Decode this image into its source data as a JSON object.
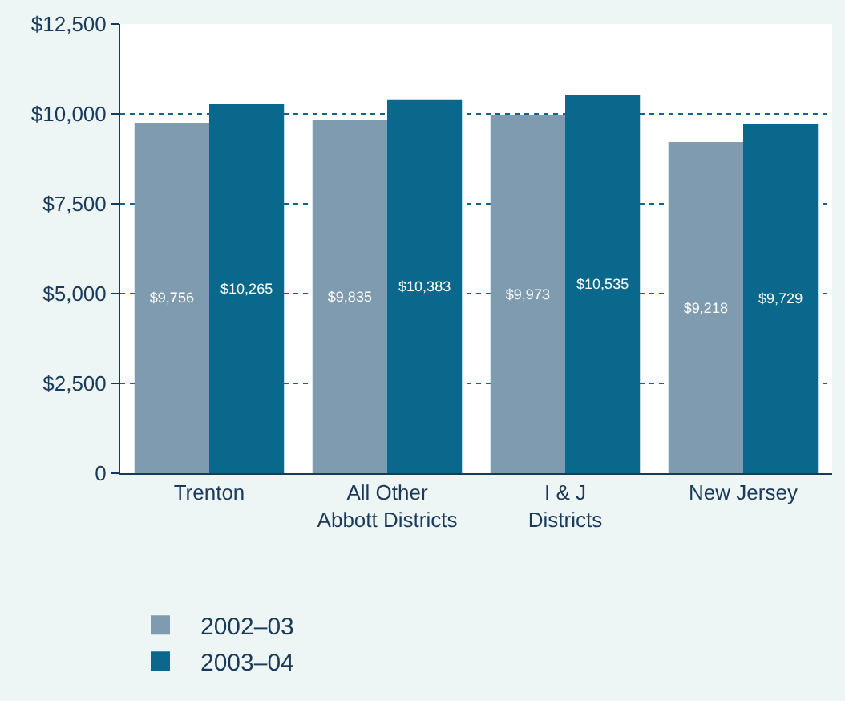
{
  "chart_data": {
    "type": "bar",
    "categories": [
      "Trenton",
      "All Other\nAbbott Districts",
      "I & J\nDistricts",
      "New Jersey"
    ],
    "series": [
      {
        "name": "2002–03",
        "color": "#7f9bb0",
        "values": [
          9756,
          9835,
          9973,
          9218
        ],
        "value_labels": [
          "$9,756",
          "$9,835",
          "$9,973",
          "$9,218"
        ]
      },
      {
        "name": "2003–04",
        "color": "#0a688c",
        "values": [
          10265,
          10383,
          10535,
          9729
        ],
        "value_labels": [
          "$10,265",
          "$10,383",
          "$10,535",
          "$9,729"
        ]
      }
    ],
    "ylim": [
      0,
      12500
    ],
    "yticks": [
      {
        "value": 0,
        "label": "0"
      },
      {
        "value": 2500,
        "label": "$2,500"
      },
      {
        "value": 5000,
        "label": "$5,000"
      },
      {
        "value": 7500,
        "label": "$7,500"
      },
      {
        "value": 10000,
        "label": "$10,000"
      },
      {
        "value": 12500,
        "label": "$12,500"
      }
    ],
    "grid": "y",
    "legend": "bottom left"
  }
}
